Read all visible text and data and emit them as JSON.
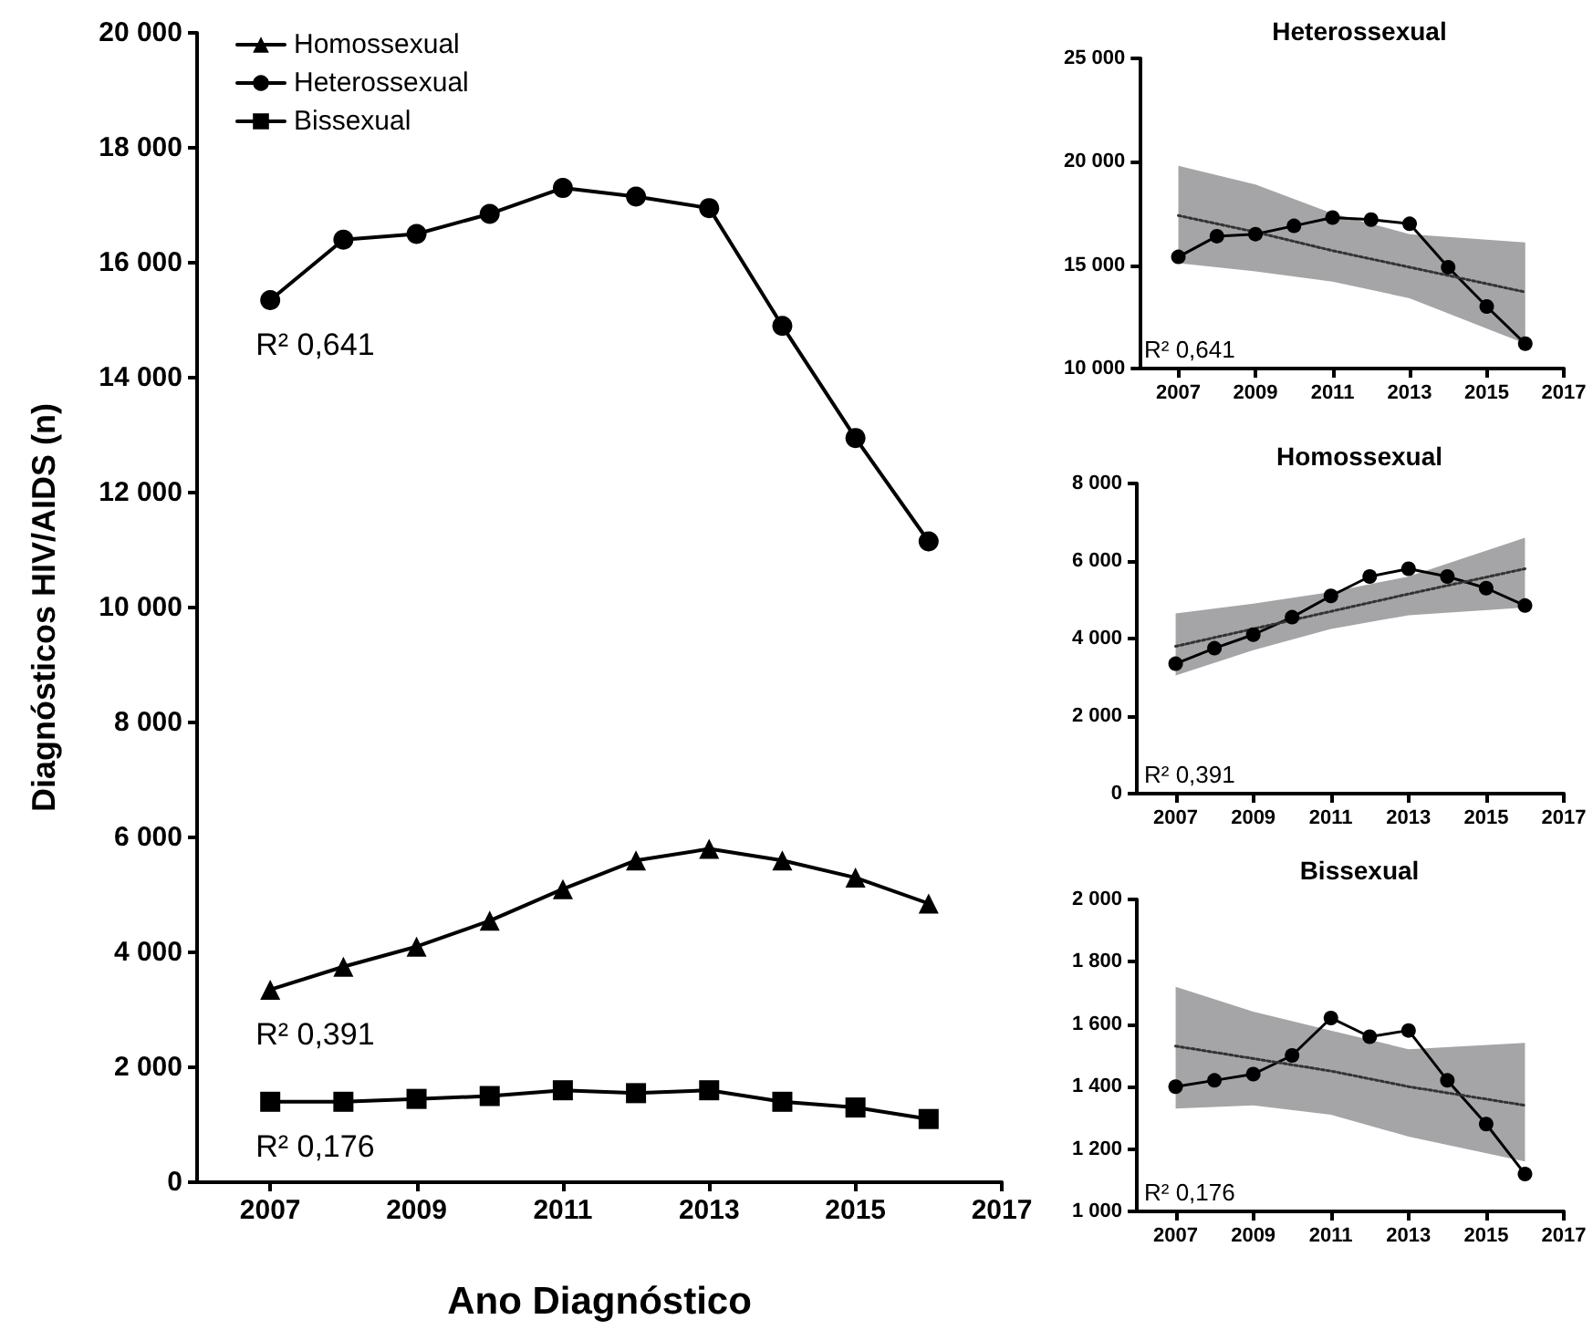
{
  "chart_data": [
    {
      "type": "line",
      "xlabel": "Ano Diagnóstico",
      "ylabel": "Diagnósticos HIV/AIDS (n)",
      "x": [
        2007,
        2008,
        2009,
        2010,
        2011,
        2012,
        2013,
        2014,
        2015,
        2016
      ],
      "series": [
        {
          "name": "Homossexual",
          "color": "#000000",
          "marker": "triangle",
          "values": [
            3350,
            3750,
            4100,
            4550,
            5100,
            5600,
            5800,
            5600,
            5300,
            4850
          ]
        },
        {
          "name": "Heterossexual",
          "color": "#000000",
          "marker": "circle",
          "values": [
            15350,
            16400,
            16500,
            16850,
            17300,
            17150,
            16950,
            14900,
            12950,
            11150
          ]
        },
        {
          "name": "Bissexual",
          "color": "#000000",
          "marker": "square",
          "values": [
            1400,
            1400,
            1450,
            1500,
            1600,
            1550,
            1600,
            1400,
            1300,
            1100
          ]
        }
      ],
      "xlim": [
        2006,
        2017
      ],
      "xticks": [
        2007,
        2009,
        2011,
        2013,
        2015,
        2017
      ],
      "ylim": [
        0,
        20000
      ],
      "yticks": [
        0,
        {
          "value": 2000,
          "label": "2 000"
        },
        {
          "value": 4000,
          "label": "4 000"
        },
        {
          "value": 6000,
          "label": "6 000"
        },
        {
          "value": 8000,
          "label": "8 000"
        },
        {
          "value": 10000,
          "label": "10 000"
        },
        {
          "value": 12000,
          "label": "12 000"
        },
        {
          "value": 14000,
          "label": "14 000"
        },
        {
          "value": 16000,
          "label": "16 000"
        },
        {
          "value": 18000,
          "label": "18 000"
        },
        {
          "value": 20000,
          "label": "20 000"
        }
      ],
      "legend": "top left",
      "grid": false,
      "line_style": "solid",
      "annotations": [
        "R² 0,391",
        "R² 0,641",
        "R² 0,176"
      ]
    },
    {
      "type": "line",
      "title": "Heterossexual",
      "x": [
        2007,
        2008,
        2009,
        2010,
        2011,
        2012,
        2013,
        2014,
        2015,
        2016
      ],
      "series": [
        {
          "color": "#000000",
          "marker": "circle",
          "line_style": "solid",
          "values": [
            15400,
            16400,
            16500,
            16900,
            17300,
            17200,
            17000,
            14900,
            13000,
            11200
          ]
        },
        {
          "color": "#333333",
          "marker": "none",
          "line_style": "dotted",
          "x": [
            2007,
            2009,
            2011,
            2013,
            2016
          ],
          "values": [
            17400,
            16600,
            15700,
            14900,
            13700
          ],
          "lower": [
            15100,
            14700,
            14200,
            13400,
            11200
          ],
          "upper": [
            19800,
            18900,
            17500,
            16500,
            16100
          ]
        }
      ],
      "xlim": [
        2006,
        2017
      ],
      "xticks": [
        2007,
        2009,
        2011,
        2013,
        2015,
        2017
      ],
      "ylim": [
        10000,
        25000
      ],
      "yticks": [
        {
          "value": 10000,
          "label": "10 000"
        },
        {
          "value": 15000,
          "label": "15 000"
        },
        {
          "value": 20000,
          "label": "20 000"
        },
        {
          "value": 25000,
          "label": "25 000"
        }
      ],
      "grid": false,
      "annotations": [
        "R² 0,641"
      ]
    },
    {
      "type": "line",
      "title": "Homossexual",
      "x": [
        2007,
        2008,
        2009,
        2010,
        2011,
        2012,
        2013,
        2014,
        2015,
        2016
      ],
      "series": [
        {
          "color": "#000000",
          "marker": "circle",
          "line_style": "solid",
          "values": [
            3350,
            3750,
            4100,
            4550,
            5100,
            5600,
            5800,
            5600,
            5300,
            4850
          ]
        },
        {
          "color": "#333333",
          "marker": "none",
          "line_style": "dotted",
          "x": [
            2007,
            2009,
            2011,
            2013,
            2016
          ],
          "values": [
            3800,
            4250,
            4700,
            5150,
            5800
          ],
          "lower": [
            3050,
            3700,
            4250,
            4600,
            4800
          ],
          "upper": [
            4650,
            4900,
            5200,
            5600,
            6600
          ]
        }
      ],
      "xlim": [
        2006,
        2017
      ],
      "xticks": [
        2007,
        2009,
        2011,
        2013,
        2015,
        2017
      ],
      "ylim": [
        0,
        8000
      ],
      "yticks": [
        0,
        {
          "value": 2000,
          "label": "2 000"
        },
        {
          "value": 4000,
          "label": "4 000"
        },
        {
          "value": 6000,
          "label": "6 000"
        },
        {
          "value": 8000,
          "label": "8 000"
        }
      ],
      "grid": false,
      "annotations": [
        "R² 0,391"
      ]
    },
    {
      "type": "line",
      "title": "Bissexual",
      "x": [
        2007,
        2008,
        2009,
        2010,
        2011,
        2012,
        2013,
        2014,
        2015,
        2016
      ],
      "series": [
        {
          "color": "#000000",
          "marker": "circle",
          "line_style": "solid",
          "values": [
            1400,
            1420,
            1440,
            1500,
            1620,
            1560,
            1580,
            1420,
            1280,
            1120
          ]
        },
        {
          "color": "#333333",
          "marker": "none",
          "line_style": "dotted",
          "x": [
            2007,
            2009,
            2011,
            2013,
            2016
          ],
          "values": [
            1530,
            1490,
            1450,
            1400,
            1340
          ],
          "lower": [
            1330,
            1340,
            1310,
            1240,
            1160
          ],
          "upper": [
            1720,
            1640,
            1580,
            1520,
            1540
          ]
        }
      ],
      "xlim": [
        2006,
        2017
      ],
      "xticks": [
        2007,
        2009,
        2011,
        2013,
        2015,
        2017
      ],
      "ylim": [
        1000,
        2000
      ],
      "yticks": [
        {
          "value": 1000,
          "label": "1 000"
        },
        {
          "value": 1200,
          "label": "1 200"
        },
        {
          "value": 1400,
          "label": "1 400"
        },
        {
          "value": 1600,
          "label": "1 600"
        },
        {
          "value": 1800,
          "label": "1 800"
        },
        {
          "value": 2000,
          "label": "2 000"
        }
      ],
      "grid": false,
      "annotations": [
        "R² 0,176"
      ]
    }
  ]
}
